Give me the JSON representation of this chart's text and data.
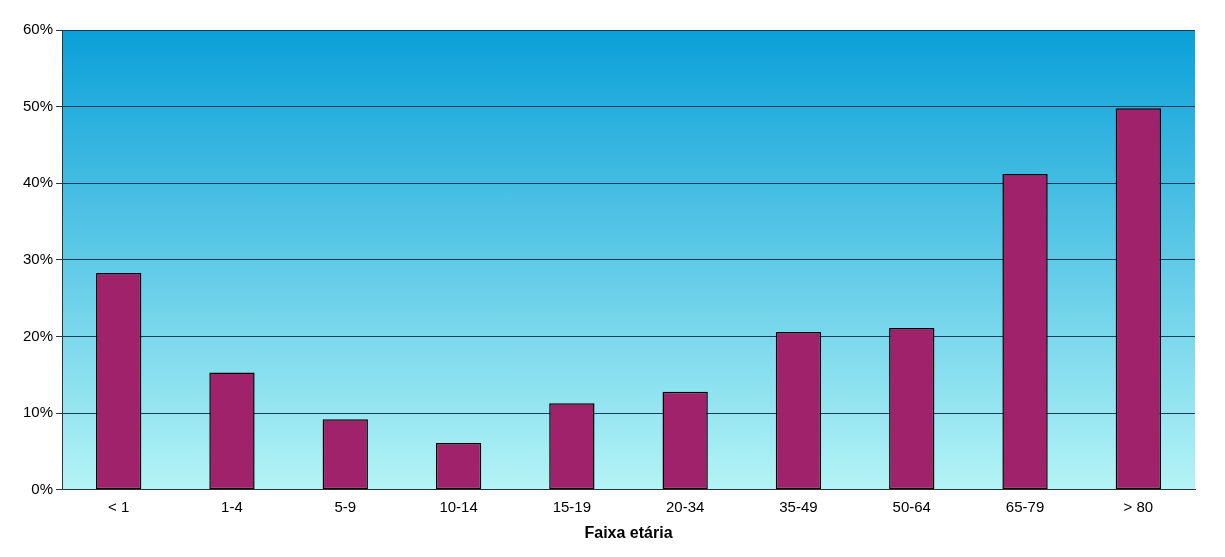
{
  "chart_data": {
    "type": "bar",
    "xlabel": "Faixa etária",
    "categories": [
      "< 1",
      "1-4",
      "5-9",
      "10-14",
      "15-19",
      "20-34",
      "35-49",
      "50-64",
      "65-79",
      "> 80"
    ],
    "values": [
      28.3,
      15.3,
      9.2,
      6.1,
      11.3,
      12.8,
      20.6,
      21.1,
      41.2,
      49.8
    ],
    "color": "#a0226a",
    "ylim": [
      0,
      60
    ],
    "yticks": [
      {
        "value": 0,
        "label": "0%"
      },
      {
        "value": 10,
        "label": "10%"
      },
      {
        "value": 20,
        "label": "20%"
      },
      {
        "value": 30,
        "label": "30%"
      },
      {
        "value": 40,
        "label": "40%"
      },
      {
        "value": 50,
        "label": "50%"
      },
      {
        "value": 60,
        "label": "60%"
      }
    ],
    "grid": "y"
  }
}
